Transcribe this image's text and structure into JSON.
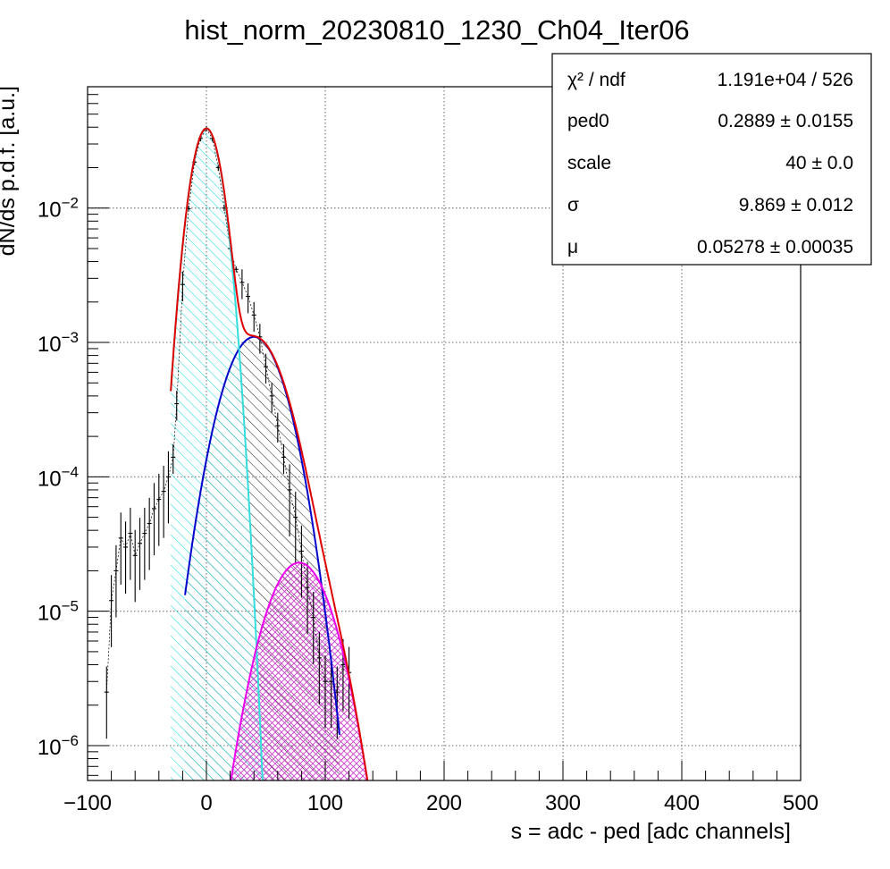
{
  "chart_data": {
    "type": "line",
    "title": "hist_norm_20230810_1230_Ch04_Iter06",
    "xlabel": "s = adc - ped [adc channels]",
    "ylabel": "dN/ds p.d.f. [a.u.]",
    "xlim": [
      -100,
      500
    ],
    "ylim": [
      5.5e-07,
      0.08
    ],
    "yscale": "log",
    "grid": true,
    "x_ticks": [
      {
        "value": -100,
        "label": "−100"
      },
      {
        "value": 0,
        "label": "0"
      },
      {
        "value": 100,
        "label": "100"
      },
      {
        "value": 200,
        "label": "200"
      },
      {
        "value": 300,
        "label": "300"
      },
      {
        "value": 400,
        "label": "400"
      },
      {
        "value": 500,
        "label": "500"
      }
    ],
    "y_ticks": [
      {
        "value": 1e-06,
        "base": "10",
        "exp": "−6"
      },
      {
        "value": 1e-05,
        "base": "10",
        "exp": "−5"
      },
      {
        "value": 0.0001,
        "base": "10",
        "exp": "−4"
      },
      {
        "value": 0.001,
        "base": "10",
        "exp": "−3"
      },
      {
        "value": 0.01,
        "base": "10",
        "exp": "−2"
      }
    ],
    "stats_box": {
      "rows": [
        {
          "name": "χ² / ndf",
          "value": "1.191e+04 / 526"
        },
        {
          "name": "ped0",
          "value": "0.2889  ± 0.0155"
        },
        {
          "name": "scale",
          "value": "40  ± 0.0"
        },
        {
          "name": "σ",
          "value": "9.869  ± 0.012"
        },
        {
          "name": "μ",
          "value": "0.05278  ± 0.00035"
        }
      ]
    },
    "fit_params": {
      "ped0": 0.2889,
      "scale": 40,
      "sigma": 9.869,
      "mu": 0.05278
    },
    "series": [
      {
        "kind": "data",
        "color": "#000000",
        "x": [
          -84,
          -80,
          -76,
          -72,
          -68,
          -64,
          -60,
          -56,
          -52,
          -48,
          -44,
          -40,
          -36,
          -32,
          -28,
          -25,
          -20,
          -15,
          -10,
          -5,
          0,
          5,
          10,
          15,
          20,
          25,
          30,
          35,
          40,
          45,
          50,
          55,
          60,
          65,
          70,
          75,
          80,
          85,
          90,
          95,
          100,
          105,
          110,
          115,
          120
        ],
        "y": [
          2.5e-06,
          1.2e-05,
          2e-05,
          3.5e-05,
          3e-05,
          3.8e-05,
          2.6e-05,
          3.2e-05,
          3.8e-05,
          4.5e-05,
          5.8e-05,
          6.8e-05,
          7.8e-05,
          0.0001,
          0.00014,
          0.00035,
          0.0027,
          0.0099,
          0.022,
          0.033,
          0.039,
          0.033,
          0.02,
          0.01,
          0.005,
          0.0035,
          0.0028,
          0.0022,
          0.0016,
          0.0011,
          0.00066,
          0.0004,
          0.00024,
          0.00014,
          8e-05,
          5e-05,
          2.8e-05,
          1.5e-05,
          9e-06,
          4.5e-06,
          3e-06,
          3e-06,
          2.5e-06,
          4e-06,
          3.5e-06
        ]
      },
      {
        "kind": "fit-total",
        "color": "#e00000",
        "x_range": [
          -30,
          150
        ]
      },
      {
        "kind": "pedestal-peak",
        "color": "#33dddd",
        "n": 0,
        "x_range": [
          -30,
          50
        ]
      },
      {
        "kind": "1-pe-peak",
        "color": "#0000cc",
        "n": 1,
        "x_range": [
          -18,
          112
        ]
      },
      {
        "kind": "2-pe-peak",
        "color": "#ee00ee",
        "n": 2,
        "x_range": [
          20,
          150
        ]
      }
    ]
  }
}
